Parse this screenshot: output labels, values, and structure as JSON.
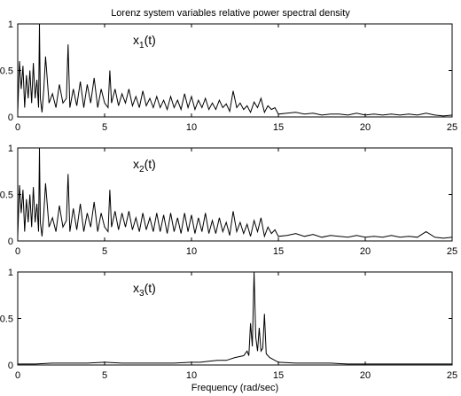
{
  "figure": {
    "title": "Lorenz system variables relative power spectral density",
    "xlabel": "Frequency (rad/sec)"
  },
  "chart_data": [
    {
      "type": "line",
      "label_base": "x",
      "label_sub": "1",
      "label_suffix": "(t)",
      "xlim": [
        0,
        25
      ],
      "ylim": [
        0,
        1
      ],
      "x_ticks": [
        0,
        5,
        10,
        15,
        20,
        25
      ],
      "y_ticks": [
        0,
        0.5,
        1
      ],
      "y_tick_labels": [
        "0",
        "0.5",
        "1"
      ],
      "line_color": "#000000",
      "x": [
        0,
        0.1,
        0.2,
        0.3,
        0.4,
        0.5,
        0.6,
        0.7,
        0.8,
        0.9,
        1,
        1.1,
        1.2,
        1.25,
        1.3,
        1.4,
        1.5,
        1.6,
        1.8,
        2,
        2.2,
        2.4,
        2.6,
        2.8,
        2.9,
        3,
        3.2,
        3.4,
        3.6,
        3.8,
        4,
        4.2,
        4.4,
        4.6,
        4.8,
        5,
        5.2,
        5.3,
        5.4,
        5.6,
        5.8,
        6,
        6.2,
        6.4,
        6.6,
        6.8,
        7,
        7.2,
        7.4,
        7.6,
        7.8,
        8,
        8.2,
        8.4,
        8.6,
        8.8,
        9,
        9.2,
        9.4,
        9.6,
        9.8,
        10,
        10.2,
        10.4,
        10.6,
        10.8,
        11,
        11.2,
        11.4,
        11.6,
        11.8,
        12,
        12.2,
        12.4,
        12.6,
        12.8,
        13,
        13.2,
        13.4,
        13.6,
        13.8,
        14,
        14.2,
        14.4,
        14.6,
        14.8,
        15,
        15.5,
        16,
        16.5,
        17,
        17.5,
        18,
        18.5,
        19,
        19.5,
        20,
        20.5,
        21,
        21.5,
        22,
        22.5,
        23,
        23.5,
        24,
        24.5,
        25
      ],
      "y": [
        0.05,
        0.6,
        0.3,
        0.55,
        0.1,
        0.45,
        0.2,
        0.5,
        0.15,
        0.58,
        0.2,
        0.4,
        0.1,
        1.0,
        0.2,
        0.05,
        0.3,
        0.65,
        0.15,
        0.25,
        0.1,
        0.35,
        0.15,
        0.2,
        0.78,
        0.1,
        0.3,
        0.12,
        0.38,
        0.1,
        0.35,
        0.15,
        0.42,
        0.1,
        0.3,
        0.15,
        0.1,
        0.5,
        0.15,
        0.3,
        0.12,
        0.25,
        0.15,
        0.3,
        0.12,
        0.22,
        0.1,
        0.28,
        0.12,
        0.2,
        0.1,
        0.22,
        0.1,
        0.18,
        0.08,
        0.22,
        0.1,
        0.18,
        0.08,
        0.25,
        0.1,
        0.22,
        0.08,
        0.18,
        0.1,
        0.2,
        0.08,
        0.15,
        0.08,
        0.18,
        0.1,
        0.14,
        0.06,
        0.28,
        0.1,
        0.15,
        0.08,
        0.12,
        0.05,
        0.16,
        0.1,
        0.2,
        0.05,
        0.12,
        0.08,
        0.1,
        0.03,
        0.04,
        0.05,
        0.03,
        0.04,
        0.02,
        0.03,
        0.03,
        0.02,
        0.04,
        0.02,
        0.03,
        0.02,
        0.03,
        0.02,
        0.03,
        0.02,
        0.04,
        0.02,
        0.01,
        0.02
      ]
    },
    {
      "type": "line",
      "label_base": "x",
      "label_sub": "2",
      "label_suffix": "(t)",
      "xlim": [
        0,
        25
      ],
      "ylim": [
        0,
        1
      ],
      "x_ticks": [
        0,
        5,
        10,
        15,
        20,
        25
      ],
      "y_ticks": [
        0,
        0.5,
        1
      ],
      "y_tick_labels": [
        "0",
        "0.5",
        "1"
      ],
      "line_color": "#000000",
      "x": [
        0,
        0.1,
        0.2,
        0.3,
        0.4,
        0.5,
        0.6,
        0.7,
        0.8,
        0.9,
        1,
        1.1,
        1.2,
        1.25,
        1.3,
        1.4,
        1.5,
        1.6,
        1.8,
        2,
        2.2,
        2.4,
        2.6,
        2.8,
        2.9,
        3,
        3.2,
        3.4,
        3.6,
        3.8,
        4,
        4.2,
        4.4,
        4.6,
        4.8,
        5,
        5.2,
        5.3,
        5.4,
        5.6,
        5.8,
        6,
        6.2,
        6.4,
        6.6,
        6.8,
        7,
        7.2,
        7.4,
        7.6,
        7.8,
        8,
        8.2,
        8.4,
        8.6,
        8.8,
        9,
        9.2,
        9.4,
        9.6,
        9.8,
        10,
        10.2,
        10.4,
        10.6,
        10.8,
        11,
        11.2,
        11.4,
        11.6,
        11.8,
        12,
        12.2,
        12.4,
        12.6,
        12.8,
        13,
        13.2,
        13.4,
        13.6,
        13.8,
        14,
        14.2,
        14.4,
        14.6,
        14.8,
        15,
        15.5,
        16,
        16.5,
        17,
        17.5,
        18,
        18.5,
        19,
        19.5,
        20,
        20.5,
        21,
        21.5,
        22,
        22.5,
        23,
        23.5,
        24,
        24.5,
        25
      ],
      "y": [
        0.05,
        0.6,
        0.3,
        0.55,
        0.1,
        0.45,
        0.2,
        0.5,
        0.15,
        0.58,
        0.2,
        0.4,
        0.1,
        1.0,
        0.2,
        0.05,
        0.3,
        0.62,
        0.15,
        0.25,
        0.1,
        0.38,
        0.15,
        0.22,
        0.72,
        0.1,
        0.35,
        0.12,
        0.4,
        0.1,
        0.3,
        0.15,
        0.42,
        0.1,
        0.3,
        0.15,
        0.1,
        0.55,
        0.15,
        0.32,
        0.12,
        0.3,
        0.15,
        0.32,
        0.12,
        0.25,
        0.1,
        0.3,
        0.12,
        0.25,
        0.1,
        0.3,
        0.1,
        0.28,
        0.08,
        0.3,
        0.1,
        0.25,
        0.08,
        0.3,
        0.1,
        0.28,
        0.08,
        0.25,
        0.1,
        0.3,
        0.08,
        0.22,
        0.08,
        0.25,
        0.1,
        0.2,
        0.06,
        0.32,
        0.1,
        0.2,
        0.08,
        0.18,
        0.05,
        0.22,
        0.1,
        0.25,
        0.05,
        0.15,
        0.08,
        0.12,
        0.05,
        0.06,
        0.08,
        0.05,
        0.07,
        0.04,
        0.06,
        0.05,
        0.04,
        0.06,
        0.04,
        0.05,
        0.04,
        0.06,
        0.04,
        0.05,
        0.04,
        0.1,
        0.04,
        0.03,
        0.04
      ]
    },
    {
      "type": "line",
      "label_base": "x",
      "label_sub": "3",
      "label_suffix": "(t)",
      "xlim": [
        0,
        25
      ],
      "ylim": [
        0,
        1
      ],
      "x_ticks": [
        0,
        5,
        10,
        15,
        20,
        25
      ],
      "y_ticks": [
        0,
        0.5,
        1
      ],
      "y_tick_labels": [
        "0",
        "0.5",
        "1"
      ],
      "line_color": "#000000",
      "x": [
        0,
        1,
        2,
        3,
        4,
        5,
        6,
        7,
        8,
        9,
        10,
        10.5,
        11,
        11.5,
        12,
        12.5,
        13,
        13.2,
        13.3,
        13.4,
        13.5,
        13.6,
        13.7,
        13.8,
        13.9,
        14,
        14.1,
        14.2,
        14.3,
        14.5,
        15,
        16,
        17,
        18,
        19,
        20,
        21,
        22,
        23,
        24,
        25
      ],
      "y": [
        0.01,
        0.01,
        0.02,
        0.02,
        0.02,
        0.03,
        0.02,
        0.02,
        0.02,
        0.02,
        0.03,
        0.03,
        0.04,
        0.05,
        0.05,
        0.08,
        0.1,
        0.15,
        0.1,
        0.45,
        0.2,
        1.0,
        0.3,
        0.15,
        0.4,
        0.15,
        0.18,
        0.55,
        0.12,
        0.08,
        0.03,
        0.02,
        0.02,
        0.02,
        0.01,
        0.01,
        0.01,
        0.01,
        0.01,
        0.01,
        0.01
      ]
    }
  ]
}
